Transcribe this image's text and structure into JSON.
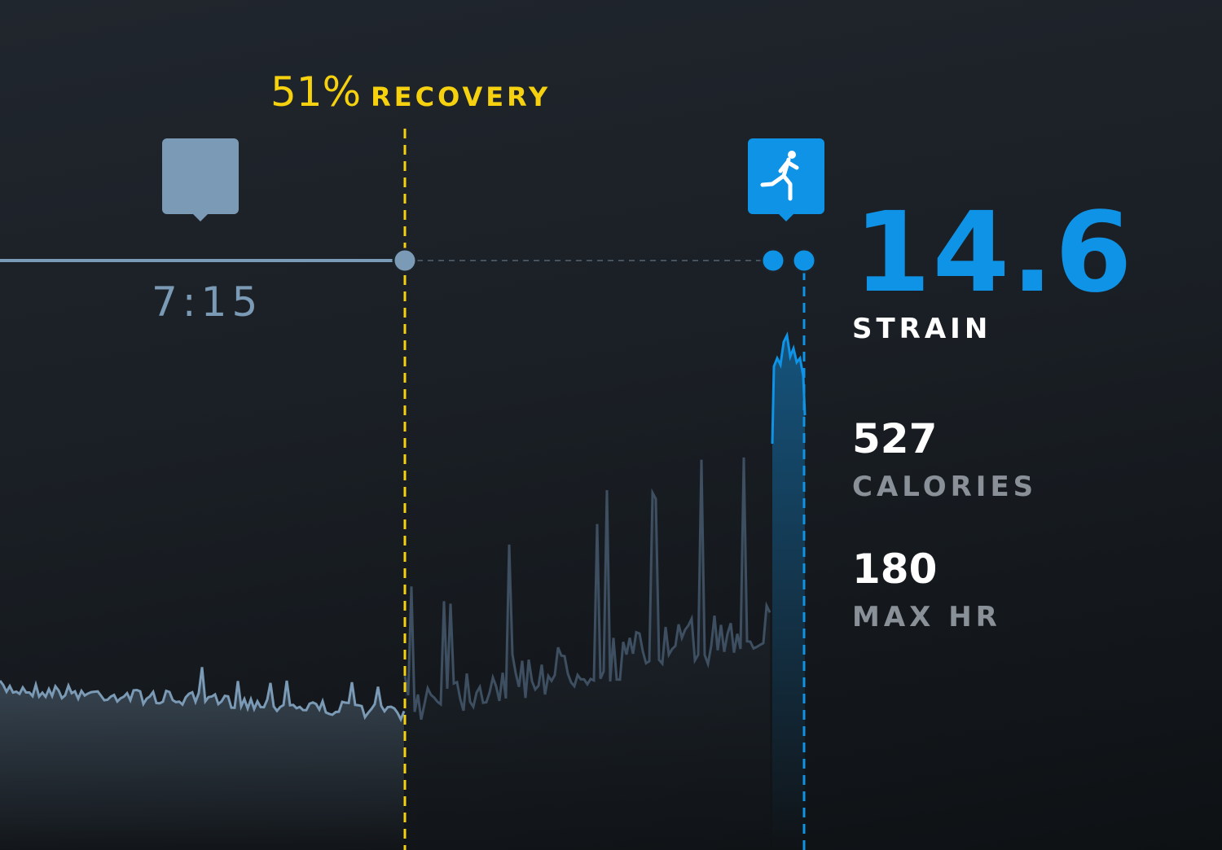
{
  "recovery": {
    "percent": "51%",
    "label": "RECOVERY",
    "color": "#f5d10f"
  },
  "sleep": {
    "icon": "moon-icon",
    "duration": "7:15",
    "color": "#7b9ab5"
  },
  "activity": {
    "icon": "running-icon",
    "color": "#0f93e6"
  },
  "strain": {
    "value": "14.6",
    "label": "STRAIN"
  },
  "stats": [
    {
      "value": "527",
      "label": "CALORIES"
    },
    {
      "value": "180",
      "label": "MAX HR"
    }
  ]
}
